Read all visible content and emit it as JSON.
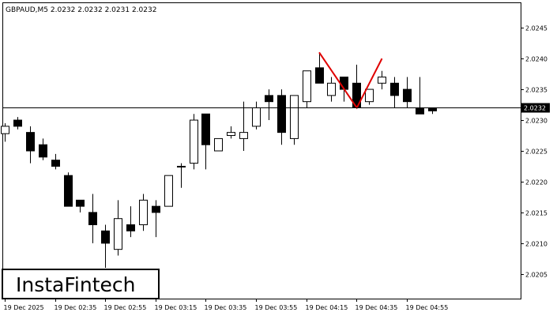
{
  "chart_data": {
    "type": "candlestick",
    "symbol_line": "GBPAUD,M5  2.0232 2.0232 2.0231 2.0232",
    "current_price_label": "2.0232",
    "current_price": 2.0232,
    "ylim": [
      2.0201,
      2.0249
    ],
    "y_ticks": [
      "2.0245",
      "2.0240",
      "2.0235",
      "2.0230",
      "2.0225",
      "2.0220",
      "2.0215",
      "2.0210",
      "2.0205"
    ],
    "x_ticks": [
      {
        "index": 0,
        "label": "19 Dec 2025"
      },
      {
        "index": 4,
        "label": "19 Dec 02:35"
      },
      {
        "index": 8,
        "label": "19 Dec 02:55"
      },
      {
        "index": 12,
        "label": "19 Dec 03:15"
      },
      {
        "index": 16,
        "label": "19 Dec 03:35"
      },
      {
        "index": 20,
        "label": "19 Dec 03:55"
      },
      {
        "index": 24,
        "label": "19 Dec 04:15"
      },
      {
        "index": 28,
        "label": "19 Dec 04:35"
      },
      {
        "index": 32,
        "label": "19 Dec 04:55"
      }
    ],
    "candles": [
      {
        "o": 2.02278,
        "h": 2.02295,
        "l": 2.02265,
        "c": 2.0229
      },
      {
        "o": 2.023,
        "h": 2.02305,
        "l": 2.02285,
        "c": 2.0229
      },
      {
        "o": 2.0228,
        "h": 2.0229,
        "l": 2.0223,
        "c": 2.0225
      },
      {
        "o": 2.0226,
        "h": 2.0227,
        "l": 2.02235,
        "c": 2.0224
      },
      {
        "o": 2.02235,
        "h": 2.02245,
        "l": 2.0222,
        "c": 2.02225
      },
      {
        "o": 2.0221,
        "h": 2.02215,
        "l": 2.0216,
        "c": 2.0216
      },
      {
        "o": 2.0217,
        "h": 2.0217,
        "l": 2.0215,
        "c": 2.0216
      },
      {
        "o": 2.0215,
        "h": 2.0218,
        "l": 2.021,
        "c": 2.0213
      },
      {
        "o": 2.0212,
        "h": 2.0213,
        "l": 2.0206,
        "c": 2.021
      },
      {
        "o": 2.0209,
        "h": 2.0217,
        "l": 2.0208,
        "c": 2.0214
      },
      {
        "o": 2.0213,
        "h": 2.0216,
        "l": 2.0211,
        "c": 2.0212
      },
      {
        "o": 2.0213,
        "h": 2.0218,
        "l": 2.0212,
        "c": 2.0217
      },
      {
        "o": 2.0216,
        "h": 2.0217,
        "l": 2.0211,
        "c": 2.0215
      },
      {
        "o": 2.0216,
        "h": 2.0221,
        "l": 2.0216,
        "c": 2.0221
      },
      {
        "o": 2.02225,
        "h": 2.0223,
        "l": 2.0219,
        "c": 2.02225
      },
      {
        "o": 2.0223,
        "h": 2.0231,
        "l": 2.0222,
        "c": 2.023
      },
      {
        "o": 2.0231,
        "h": 2.0231,
        "l": 2.0222,
        "c": 2.0226
      },
      {
        "o": 2.0225,
        "h": 2.0227,
        "l": 2.0225,
        "c": 2.0227
      },
      {
        "o": 2.02275,
        "h": 2.0229,
        "l": 2.0227,
        "c": 2.0228
      },
      {
        "o": 2.0227,
        "h": 2.0233,
        "l": 2.0225,
        "c": 2.0228
      },
      {
        "o": 2.0229,
        "h": 2.0233,
        "l": 2.02285,
        "c": 2.0232
      },
      {
        "o": 2.0234,
        "h": 2.0235,
        "l": 2.023,
        "c": 2.0233
      },
      {
        "o": 2.0234,
        "h": 2.0235,
        "l": 2.0226,
        "c": 2.0228
      },
      {
        "o": 2.0227,
        "h": 2.0234,
        "l": 2.0226,
        "c": 2.0234
      },
      {
        "o": 2.0233,
        "h": 2.0238,
        "l": 2.0232,
        "c": 2.0238
      },
      {
        "o": 2.02385,
        "h": 2.0241,
        "l": 2.0236,
        "c": 2.0236
      },
      {
        "o": 2.0234,
        "h": 2.0237,
        "l": 2.0233,
        "c": 2.0236
      },
      {
        "o": 2.0237,
        "h": 2.0237,
        "l": 2.0233,
        "c": 2.0235
      },
      {
        "o": 2.0236,
        "h": 2.0239,
        "l": 2.0232,
        "c": 2.0232
      },
      {
        "o": 2.0233,
        "h": 2.0235,
        "l": 2.02325,
        "c": 2.0235
      },
      {
        "o": 2.0236,
        "h": 2.0238,
        "l": 2.0235,
        "c": 2.0237
      },
      {
        "o": 2.0236,
        "h": 2.0237,
        "l": 2.0232,
        "c": 2.0234
      },
      {
        "o": 2.0235,
        "h": 2.0237,
        "l": 2.0232,
        "c": 2.0233
      },
      {
        "o": 2.0232,
        "h": 2.0237,
        "l": 2.0231,
        "c": 2.0231
      },
      {
        "o": 2.0232,
        "h": 2.0232,
        "l": 2.0231,
        "c": 2.02315
      }
    ],
    "pattern_line": {
      "color": "#e00000",
      "points": [
        [
          25,
          2.0241
        ],
        [
          28,
          2.0232
        ],
        [
          30,
          2.024
        ]
      ]
    },
    "colors": {
      "bull_body": "#ffffff",
      "bear_body": "#000000",
      "candle_stroke": "#000000",
      "price_tag_bg": "#000000",
      "price_line": "#000000"
    }
  },
  "logo": {
    "text": "InstaFintech"
  }
}
